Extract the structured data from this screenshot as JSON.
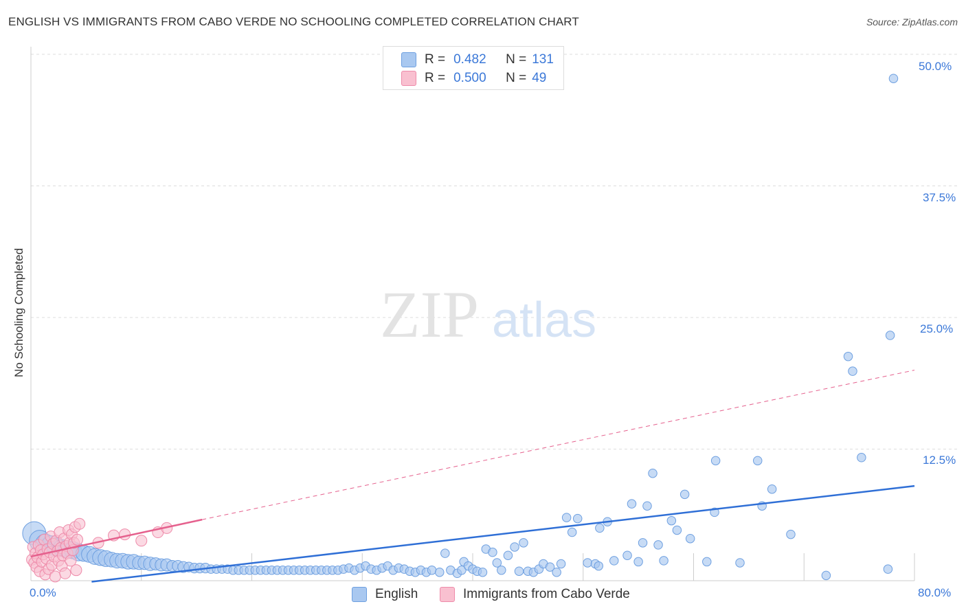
{
  "title": "ENGLISH VS IMMIGRANTS FROM CABO VERDE NO SCHOOLING COMPLETED CORRELATION CHART",
  "source": "Source: ZipAtlas.com",
  "watermark": {
    "zip": "ZIP",
    "atlas": "atlas"
  },
  "legend": {
    "r_label": "R =",
    "n_label": "N =",
    "english": {
      "r": "0.482",
      "n": "131"
    },
    "cabo": {
      "r": "0.500",
      "n": "49"
    }
  },
  "chart_data": {
    "type": "scatter",
    "title": "ENGLISH VS IMMIGRANTS FROM CABO VERDE NO SCHOOLING COMPLETED CORRELATION CHART",
    "xlabel": "",
    "ylabel": "No Schooling Completed",
    "xlim": [
      0,
      80
    ],
    "ylim": [
      0,
      50
    ],
    "x_tick_labels": [
      "0.0%",
      "80.0%"
    ],
    "y_ticks": [
      12.5,
      25.0,
      37.5,
      50.0
    ],
    "y_tick_labels": [
      "12.5%",
      "25.0%",
      "37.5%",
      "50.0%"
    ],
    "colors": {
      "english_fill": "#a9c8f0",
      "english_stroke": "#6d9fe0",
      "english_line": "#2f6fd6",
      "cabo_fill": "#f9c0d0",
      "cabo_stroke": "#ee8aa9",
      "cabo_line": "#e5608d",
      "grid": "#dddddd",
      "tick": "#3b78d8"
    },
    "series": [
      {
        "name": "English",
        "r": 0.482,
        "n": 131,
        "trend": {
          "x": [
            5.5,
            80
          ],
          "y": [
            -0.1,
            9.0
          ],
          "style": "solid"
        },
        "points": [
          [
            0.3,
            4.5,
            1.9
          ],
          [
            0.8,
            3.8,
            1.7
          ],
          [
            1.3,
            3.5,
            1.6
          ],
          [
            1.8,
            3.4,
            1.5
          ],
          [
            2.3,
            3.2,
            1.5
          ],
          [
            2.8,
            3.1,
            1.4
          ],
          [
            3.3,
            3.0,
            1.4
          ],
          [
            3.8,
            2.9,
            1.4
          ],
          [
            4.3,
            2.7,
            1.4
          ],
          [
            4.8,
            2.6,
            1.3
          ],
          [
            5.3,
            2.5,
            1.3
          ],
          [
            5.8,
            2.3,
            1.3
          ],
          [
            6.3,
            2.2,
            1.3
          ],
          [
            6.8,
            2.1,
            1.3
          ],
          [
            7.3,
            2.0,
            1.2
          ],
          [
            7.8,
            1.9,
            1.2
          ],
          [
            8.3,
            1.9,
            1.2
          ],
          [
            8.8,
            1.8,
            1.2
          ],
          [
            9.3,
            1.8,
            1.2
          ],
          [
            9.8,
            1.7,
            1.1
          ],
          [
            10.3,
            1.7,
            1.1
          ],
          [
            10.8,
            1.6,
            1.1
          ],
          [
            11.3,
            1.6,
            1.0
          ],
          [
            11.8,
            1.5,
            1.0
          ],
          [
            12.3,
            1.5,
            1.0
          ],
          [
            12.8,
            1.4,
            0.9
          ],
          [
            13.3,
            1.4,
            0.9
          ],
          [
            13.8,
            1.3,
            0.9
          ],
          [
            14.3,
            1.3,
            0.8
          ],
          [
            14.8,
            1.2,
            0.8
          ],
          [
            15.3,
            1.2,
            0.8
          ],
          [
            15.8,
            1.2,
            0.8
          ],
          [
            16.3,
            1.1,
            0.7
          ],
          [
            16.8,
            1.1,
            0.7
          ],
          [
            17.3,
            1.1,
            0.7
          ],
          [
            17.8,
            1.1,
            0.7
          ],
          [
            18.3,
            1.0,
            0.7
          ],
          [
            18.8,
            1.0,
            0.7
          ],
          [
            19.3,
            1.0,
            0.7
          ],
          [
            19.8,
            1.0,
            0.7
          ],
          [
            20.3,
            1.0,
            0.7
          ],
          [
            20.8,
            1.0,
            0.7
          ],
          [
            21.3,
            1.0,
            0.7
          ],
          [
            21.8,
            1.0,
            0.7
          ],
          [
            22.3,
            1.0,
            0.7
          ],
          [
            22.8,
            1.0,
            0.7
          ],
          [
            23.3,
            1.0,
            0.7
          ],
          [
            23.8,
            1.0,
            0.7
          ],
          [
            24.3,
            1.0,
            0.7
          ],
          [
            24.8,
            1.0,
            0.7
          ],
          [
            25.3,
            1.0,
            0.7
          ],
          [
            25.8,
            1.0,
            0.7
          ],
          [
            26.3,
            1.0,
            0.7
          ],
          [
            26.8,
            1.0,
            0.7
          ],
          [
            27.3,
            1.0,
            0.7
          ],
          [
            27.8,
            1.0,
            0.7
          ],
          [
            28.3,
            1.1,
            0.7
          ],
          [
            28.8,
            1.2,
            0.7
          ],
          [
            29.3,
            1.0,
            0.7
          ],
          [
            29.8,
            1.2,
            0.7
          ],
          [
            30.3,
            1.4,
            0.7
          ],
          [
            30.8,
            1.1,
            0.7
          ],
          [
            31.3,
            1.0,
            0.7
          ],
          [
            31.8,
            1.2,
            0.7
          ],
          [
            32.3,
            1.4,
            0.7
          ],
          [
            32.8,
            1.0,
            0.7
          ],
          [
            33.3,
            1.2,
            0.7
          ],
          [
            33.8,
            1.1,
            0.7
          ],
          [
            34.3,
            0.9,
            0.7
          ],
          [
            34.8,
            0.8,
            0.7
          ],
          [
            35.3,
            1.0,
            0.7
          ],
          [
            35.8,
            0.8,
            0.7
          ],
          [
            36.3,
            1.0,
            0.7
          ],
          [
            37.0,
            0.8,
            0.7
          ],
          [
            37.5,
            2.6,
            0.7
          ],
          [
            38.0,
            1.0,
            0.7
          ],
          [
            38.6,
            0.7,
            0.7
          ],
          [
            39.0,
            1.0,
            0.7
          ],
          [
            39.2,
            1.8,
            0.7
          ],
          [
            39.6,
            1.4,
            0.7
          ],
          [
            40.0,
            1.1,
            0.7
          ],
          [
            40.4,
            0.9,
            0.7
          ],
          [
            40.9,
            0.8,
            0.7
          ],
          [
            41.2,
            3.0,
            0.7
          ],
          [
            41.8,
            2.7,
            0.7
          ],
          [
            42.2,
            1.7,
            0.7
          ],
          [
            42.6,
            1.0,
            0.7
          ],
          [
            43.2,
            2.4,
            0.7
          ],
          [
            43.8,
            3.2,
            0.7
          ],
          [
            44.2,
            0.9,
            0.7
          ],
          [
            44.6,
            3.6,
            0.7
          ],
          [
            45.0,
            0.9,
            0.7
          ],
          [
            45.5,
            0.8,
            0.7
          ],
          [
            46.0,
            1.1,
            0.7
          ],
          [
            46.4,
            1.6,
            0.7
          ],
          [
            47.0,
            1.3,
            0.7
          ],
          [
            47.6,
            0.8,
            0.7
          ],
          [
            48.0,
            1.6,
            0.7
          ],
          [
            48.5,
            6.0,
            0.7
          ],
          [
            49.0,
            4.6,
            0.7
          ],
          [
            49.5,
            5.9,
            0.7
          ],
          [
            50.4,
            1.7,
            0.7
          ],
          [
            51.1,
            1.6,
            0.7
          ],
          [
            51.4,
            1.4,
            0.7
          ],
          [
            51.5,
            5.0,
            0.7
          ],
          [
            52.2,
            5.6,
            0.7
          ],
          [
            52.8,
            1.9,
            0.7
          ],
          [
            54.0,
            2.4,
            0.7
          ],
          [
            54.4,
            7.3,
            0.7
          ],
          [
            55.0,
            1.8,
            0.7
          ],
          [
            55.4,
            3.6,
            0.7
          ],
          [
            55.8,
            7.1,
            0.7
          ],
          [
            56.3,
            10.2,
            0.7
          ],
          [
            56.8,
            3.4,
            0.7
          ],
          [
            57.3,
            1.9,
            0.7
          ],
          [
            58.0,
            5.7,
            0.7
          ],
          [
            58.5,
            4.8,
            0.7
          ],
          [
            59.2,
            8.2,
            0.7
          ],
          [
            59.7,
            4.0,
            0.7
          ],
          [
            61.2,
            1.8,
            0.7
          ],
          [
            61.9,
            6.5,
            0.7
          ],
          [
            62.0,
            11.4,
            0.7
          ],
          [
            64.2,
            1.7,
            0.7
          ],
          [
            65.8,
            11.4,
            0.7
          ],
          [
            66.2,
            7.1,
            0.7
          ],
          [
            67.1,
            8.7,
            0.7
          ],
          [
            68.8,
            4.4,
            0.7
          ],
          [
            72.0,
            0.5,
            0.7
          ],
          [
            74.0,
            21.3,
            0.7
          ],
          [
            74.4,
            19.9,
            0.7
          ],
          [
            75.2,
            11.7,
            0.7
          ],
          [
            77.6,
            1.1,
            0.7
          ],
          [
            77.8,
            23.3,
            0.7
          ],
          [
            78.1,
            47.7,
            0.7
          ]
        ]
      },
      {
        "name": "Immigrants from Cabo Verde",
        "r": 0.5,
        "n": 49,
        "trend": {
          "x": [
            0,
            15.5
          ],
          "y": [
            2.3,
            5.8
          ],
          "x_dashed": [
            15.5,
            80
          ],
          "y_dashed": [
            5.8,
            20.0
          ]
        },
        "points": [
          [
            0.1,
            2.0
          ],
          [
            0.2,
            3.2
          ],
          [
            0.3,
            1.7
          ],
          [
            0.4,
            2.6
          ],
          [
            0.5,
            1.3
          ],
          [
            0.6,
            2.2
          ],
          [
            0.7,
            3.4
          ],
          [
            0.8,
            0.9
          ],
          [
            0.9,
            2.9
          ],
          [
            1.0,
            1.8
          ],
          [
            1.1,
            2.5
          ],
          [
            1.2,
            3.9
          ],
          [
            1.3,
            0.6
          ],
          [
            1.4,
            2.1
          ],
          [
            1.5,
            3.0
          ],
          [
            1.6,
            1.1
          ],
          [
            1.7,
            2.7
          ],
          [
            1.8,
            4.2
          ],
          [
            1.9,
            1.5
          ],
          [
            2.0,
            3.5
          ],
          [
            2.1,
            2.3
          ],
          [
            2.2,
            0.4
          ],
          [
            2.3,
            3.8
          ],
          [
            2.4,
            2.8
          ],
          [
            2.5,
            1.9
          ],
          [
            2.6,
            4.6
          ],
          [
            2.7,
            3.1
          ],
          [
            2.8,
            1.4
          ],
          [
            2.9,
            2.4
          ],
          [
            3.0,
            4.0
          ],
          [
            3.1,
            0.7
          ],
          [
            3.2,
            3.3
          ],
          [
            3.3,
            2.6
          ],
          [
            3.4,
            4.8
          ],
          [
            3.5,
            3.6
          ],
          [
            3.6,
            1.9
          ],
          [
            3.7,
            4.4
          ],
          [
            3.8,
            2.9
          ],
          [
            3.9,
            3.6
          ],
          [
            4.0,
            5.1
          ],
          [
            4.1,
            1.0
          ],
          [
            4.2,
            3.9
          ],
          [
            4.4,
            5.4
          ],
          [
            6.1,
            3.6
          ],
          [
            7.5,
            4.3
          ],
          [
            8.5,
            4.4
          ],
          [
            10.0,
            3.8
          ],
          [
            11.5,
            4.6
          ],
          [
            12.3,
            5.0
          ]
        ]
      }
    ]
  }
}
